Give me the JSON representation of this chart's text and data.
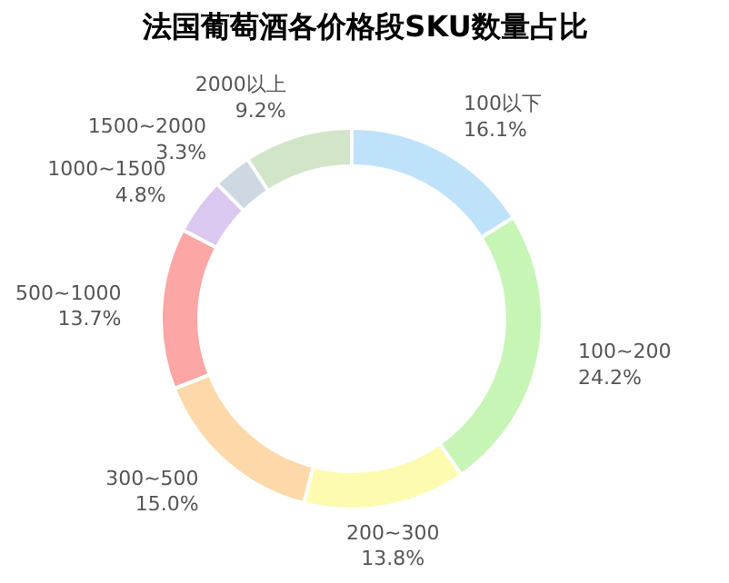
{
  "chart_data": {
    "type": "donut",
    "title": "法国葡萄酒各价格段SKU数量占比",
    "categories": [
      "100以下",
      "100~200",
      "200~300",
      "300~500",
      "500~1000",
      "1000~1500",
      "1500~2000",
      "2000以上"
    ],
    "values": [
      16.1,
      24.2,
      13.8,
      15.0,
      13.7,
      4.8,
      3.3,
      9.2
    ],
    "value_labels": [
      "16.1%",
      "24.2%",
      "13.8%",
      "15.0%",
      "13.7%",
      "4.8%",
      "3.3%",
      "9.2%"
    ],
    "colors": [
      "#bfe2fb",
      "#c6f5b6",
      "#fdfbb0",
      "#fdd9aa",
      "#fca6a6",
      "#dac8f0",
      "#cdd8e2",
      "#d2e5c8"
    ]
  }
}
